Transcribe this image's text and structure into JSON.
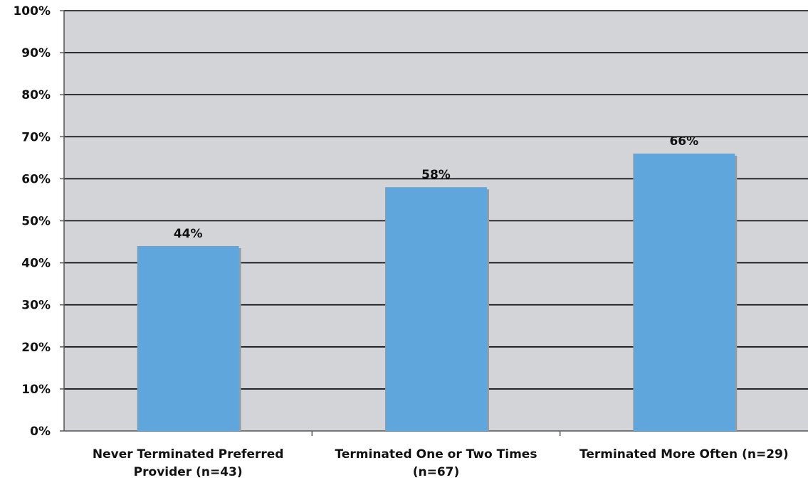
{
  "chart_data": {
    "type": "bar",
    "categories": [
      [
        "Never Terminated Preferred",
        "Provider (n=43)"
      ],
      [
        "Terminated One or Two Times",
        "(n=67)"
      ],
      [
        "Terminated More Often (n=29)"
      ]
    ],
    "values": [
      44,
      58,
      66
    ],
    "data_labels": [
      "44%",
      "58%",
      "66%"
    ],
    "ylim": [
      0,
      100
    ],
    "yticks": [
      0,
      10,
      20,
      30,
      40,
      50,
      60,
      70,
      80,
      90,
      100
    ],
    "ytick_labels": [
      "0%",
      "10%",
      "20%",
      "30%",
      "40%",
      "50%",
      "60%",
      "70%",
      "80%",
      "90%",
      "100%"
    ],
    "title": "",
    "xlabel": "",
    "ylabel": "",
    "grid": true,
    "legend": "none",
    "colors": {
      "bar": "#5fa6dd",
      "bar_shadow": "#9a9a9a",
      "plot_background": "#d3d4d8",
      "gridline": "#000000",
      "axis": "#555555"
    }
  }
}
